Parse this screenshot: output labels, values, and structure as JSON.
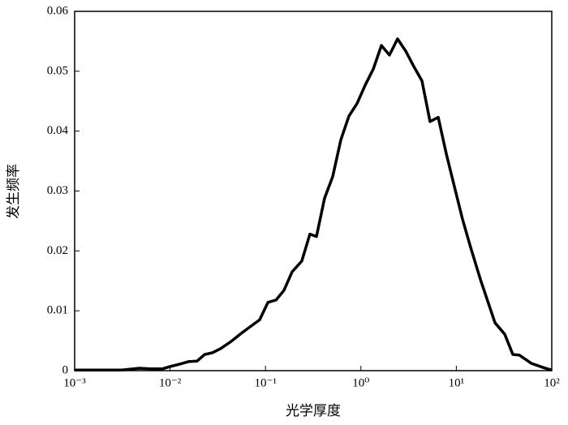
{
  "chart_data": {
    "type": "line",
    "xlabel": "光学厚度",
    "ylabel": "发生频率",
    "xscale": "log",
    "color": "#000000",
    "x": [
      0.001,
      0.00311,
      0.00479,
      0.00618,
      0.00828,
      0.0101,
      0.0127,
      0.0155,
      0.0192,
      0.023,
      0.0279,
      0.034,
      0.0438,
      0.0553,
      0.0714,
      0.0869,
      0.106,
      0.129,
      0.156,
      0.19,
      0.24,
      0.292,
      0.342,
      0.416,
      0.506,
      0.615,
      0.748,
      0.91,
      1.11,
      1.35,
      1.64,
      1.99,
      2.42,
      2.94,
      3.58,
      4.36,
      5.3,
      6.46,
      7.85,
      9.55,
      11.6,
      14.1,
      17.9,
      25.4,
      32.1,
      39.1,
      45.7,
      61.4,
      82.2,
      100
    ],
    "values": [
      0.0001,
      0.0001,
      0.0004,
      0.0003,
      0.0003,
      0.0007,
      0.0011,
      0.0015,
      0.0016,
      0.0027,
      0.003,
      0.0037,
      0.0049,
      0.0062,
      0.0075,
      0.0085,
      0.0114,
      0.0118,
      0.0134,
      0.0165,
      0.0183,
      0.0228,
      0.0224,
      0.0288,
      0.0324,
      0.0385,
      0.0425,
      0.0446,
      0.0477,
      0.0504,
      0.0543,
      0.0527,
      0.0554,
      0.0534,
      0.0508,
      0.0484,
      0.0416,
      0.0423,
      0.0362,
      0.0307,
      0.0253,
      0.0206,
      0.0152,
      0.008,
      0.0061,
      0.0027,
      0.0026,
      0.0012,
      0.0005,
      0.0001
    ],
    "xlim": [
      0.001,
      100
    ],
    "ylim": [
      0,
      0.06
    ],
    "xticks": [
      {
        "value": 0.001,
        "label": "10⁻³"
      },
      {
        "value": 0.01,
        "label": "10⁻²"
      },
      {
        "value": 0.1,
        "label": "10⁻¹"
      },
      {
        "value": 1,
        "label": "10⁰"
      },
      {
        "value": 10,
        "label": "10¹"
      },
      {
        "value": 100,
        "label": "10²"
      }
    ],
    "yticks": [
      {
        "value": 0,
        "label": "0"
      },
      {
        "value": 0.01,
        "label": "0.01"
      },
      {
        "value": 0.02,
        "label": "0.02"
      },
      {
        "value": 0.03,
        "label": "0.03"
      },
      {
        "value": 0.04,
        "label": "0.04"
      },
      {
        "value": 0.05,
        "label": "0.05"
      },
      {
        "value": 0.06,
        "label": "0.06"
      }
    ]
  }
}
